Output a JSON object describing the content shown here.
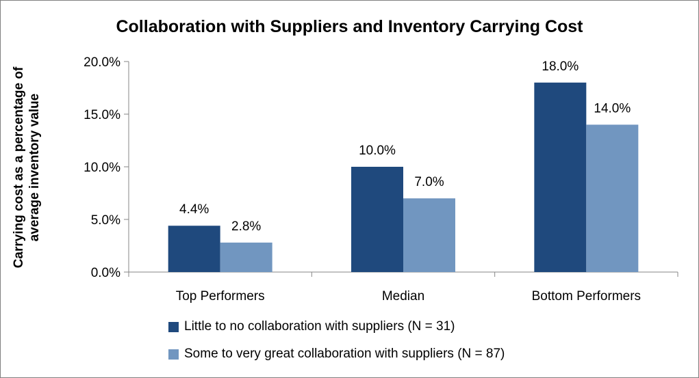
{
  "chart_data": {
    "type": "bar",
    "title": "Collaboration with Suppliers and Inventory Carrying Cost",
    "ylabel_lines": [
      "Carrying cost as a percentage of",
      "average inventory value"
    ],
    "categories": [
      "Top Performers",
      "Median",
      "Bottom Performers"
    ],
    "series": [
      {
        "name": "Little to no collaboration with suppliers (N = 31)",
        "values": [
          4.4,
          10.0,
          18.0
        ],
        "labels": [
          "4.4%",
          "10.0%",
          "18.0%"
        ],
        "color": "#1f497d"
      },
      {
        "name": "Some to very great collaboration with suppliers (N = 87)",
        "values": [
          2.8,
          7.0,
          14.0
        ],
        "labels": [
          "2.8%",
          "7.0%",
          "14.0%"
        ],
        "color": "#7196c0"
      }
    ],
    "ylim": [
      0,
      20
    ],
    "yticks": [
      0,
      5,
      10,
      15,
      20
    ],
    "ytick_labels": [
      "0.0%",
      "5.0%",
      "10.0%",
      "15.0%",
      "20.0%"
    ],
    "grid": false,
    "legend_position": "bottom"
  }
}
